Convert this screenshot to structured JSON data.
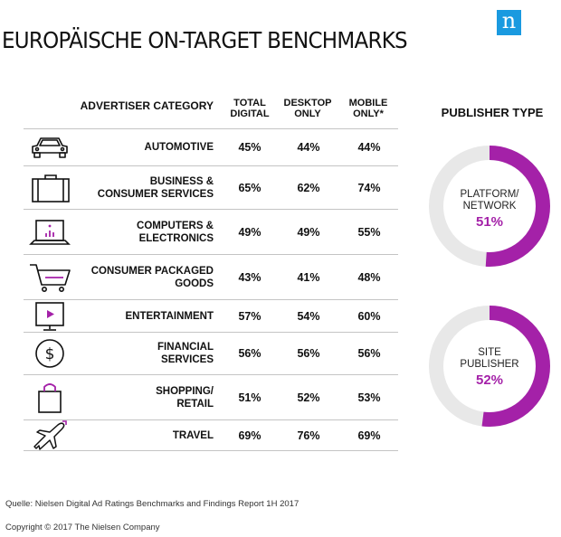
{
  "title": "EUROPÄISCHE ON-TARGET BENCHMARKS",
  "logo_letter": "n",
  "colors": {
    "accent": "#a421a8",
    "ring_bg": "#e8e8e8",
    "logo_bg": "#1a9ae0"
  },
  "table": {
    "header_category": "ADVERTISER CATEGORY",
    "columns": [
      "TOTAL DIGITAL",
      "DESKTOP ONLY",
      "MOBILE ONLY*"
    ],
    "rows": [
      {
        "category": "AUTOMOTIVE",
        "icon": "car-icon",
        "values": [
          "45%",
          "44%",
          "44%"
        ]
      },
      {
        "category": "BUSINESS &\nCONSUMER SERVICES",
        "icon": "briefcase-icon",
        "values": [
          "65%",
          "62%",
          "74%"
        ]
      },
      {
        "category": "COMPUTERS &\nELECTRONICS",
        "icon": "laptop-icon",
        "values": [
          "49%",
          "49%",
          "55%"
        ]
      },
      {
        "category": "CONSUMER PACKAGED\nGOODS",
        "icon": "shopping-cart-icon",
        "values": [
          "43%",
          "41%",
          "48%"
        ]
      },
      {
        "category": "ENTERTAINMENT",
        "icon": "video-screen-icon",
        "values": [
          "57%",
          "54%",
          "60%"
        ]
      },
      {
        "category": "FINANCIAL\nSERVICES",
        "icon": "dollar-coin-icon",
        "values": [
          "56%",
          "56%",
          "56%"
        ]
      },
      {
        "category": "SHOPPING/\nRETAIL",
        "icon": "shopping-bag-icon",
        "values": [
          "51%",
          "52%",
          "53%"
        ]
      },
      {
        "category": "TRAVEL",
        "icon": "airplane-icon",
        "values": [
          "69%",
          "76%",
          "69%"
        ]
      }
    ]
  },
  "publisher": {
    "title": "PUBLISHER TYPE",
    "items": [
      {
        "label": "PLATFORM/\nNETWORK",
        "value_text": "51%",
        "value": 51
      },
      {
        "label": "SITE\nPUBLISHER",
        "value_text": "52%",
        "value": 52
      }
    ]
  },
  "chart_data": [
    {
      "type": "table",
      "columns": [
        "ADVERTISER CATEGORY",
        "TOTAL DIGITAL",
        "DESKTOP ONLY",
        "MOBILE ONLY*"
      ],
      "rows": [
        [
          "AUTOMOTIVE",
          45,
          44,
          44
        ],
        [
          "BUSINESS & CONSUMER SERVICES",
          65,
          62,
          74
        ],
        [
          "COMPUTERS & ELECTRONICS",
          49,
          49,
          55
        ],
        [
          "CONSUMER PACKAGED GOODS",
          43,
          41,
          48
        ],
        [
          "ENTERTAINMENT",
          57,
          54,
          60
        ],
        [
          "FINANCIAL SERVICES",
          56,
          56,
          56
        ],
        [
          "SHOPPING/ RETAIL",
          51,
          52,
          53
        ],
        [
          "TRAVEL",
          69,
          76,
          69
        ]
      ]
    },
    {
      "type": "pie",
      "title": "PUBLISHER TYPE",
      "categories": [
        "PLATFORM/ NETWORK",
        "SITE PUBLISHER"
      ],
      "values": [
        51,
        52
      ]
    }
  ],
  "footer": {
    "source": "Quelle: Nielsen Digital Ad Ratings Benchmarks and Findings Report 1H 2017",
    "copyright": "Copyright © 2017 The Nielsen Company"
  }
}
